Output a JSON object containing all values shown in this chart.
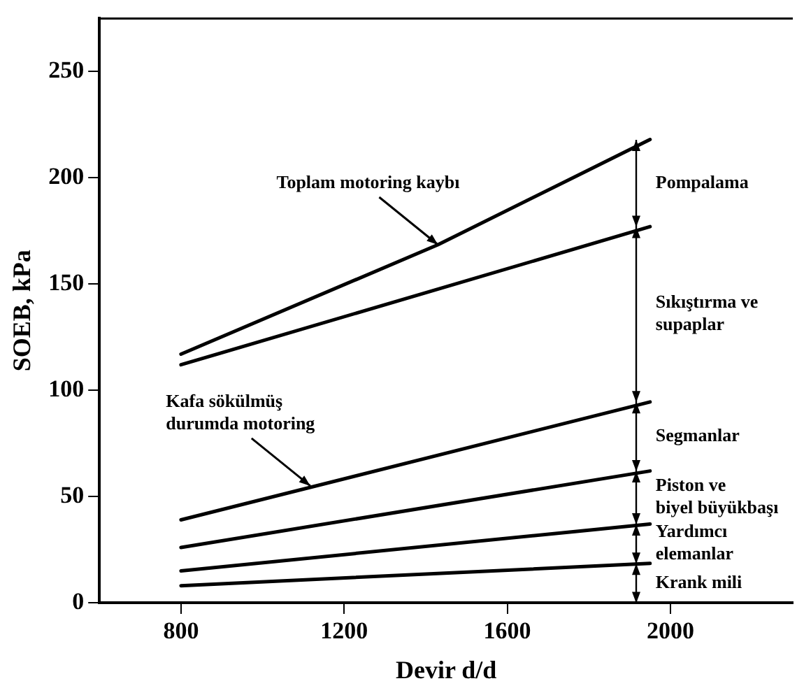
{
  "chart_data": {
    "type": "line",
    "xlabel": "Devir d/d",
    "ylabel": "SOEB, kPa",
    "xlim": [
      600,
      2300
    ],
    "xticks": [
      800,
      1200,
      1600,
      2000
    ],
    "ylim": [
      0,
      275
    ],
    "yticks": [
      0,
      50,
      100,
      150,
      200,
      250
    ],
    "grid": false,
    "legend": false,
    "marker": "none",
    "line_style": "solid",
    "series": [
      {
        "color": "#000000",
        "x": [
          800,
          1430,
          1950
        ],
        "values": [
          117,
          168.5,
          218
        ]
      },
      {
        "color": "#000000",
        "x": [
          800,
          1950
        ],
        "values": [
          112,
          177
        ]
      },
      {
        "color": "#000000",
        "x": [
          800,
          1950
        ],
        "values": [
          39,
          94.5
        ]
      },
      {
        "color": "#000000",
        "x": [
          800,
          1950
        ],
        "values": [
          26,
          62
        ]
      },
      {
        "color": "#000000",
        "x": [
          800,
          1950
        ],
        "values": [
          15,
          37
        ]
      },
      {
        "color": "#000000",
        "x": [
          800,
          1950
        ],
        "values": [
          8,
          18.5
        ]
      }
    ],
    "annotations": [
      {
        "text": "Toplam motoring kaybı",
        "x": 1430,
        "y": 168.5
      },
      {
        "text": "Kafa sökülmüş\ndurumda motoring",
        "x": 1117,
        "y": 55
      },
      "Pompalama",
      "Sıkıştırma ve\nsupaplar",
      "Segmanlar",
      "Piston ve\nbiyel büyükbaşı",
      "Yardımcı\nelemanlar",
      "Krank mili"
    ]
  }
}
